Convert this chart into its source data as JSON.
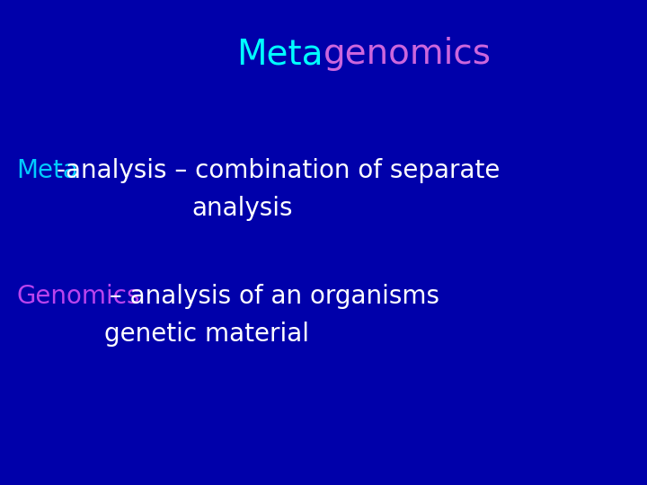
{
  "background_color": "#0000aa",
  "title_meta": "Meta",
  "title_genomics": "genomics",
  "title_meta_color": "#00ffff",
  "title_genomics_color": "#cc66dd",
  "title_fontsize": 28,
  "line1_part1": "Meta",
  "line1_part1_color": "#00ccff",
  "line1_part2": "-analysis – combination of separate",
  "line1_part2_color": "#ffffff",
  "line2": "analysis",
  "line2_color": "#ffffff",
  "line3_part1": "Genomics",
  "line3_part1_color": "#bb44ee",
  "line3_part2": " – analysis of an organisms",
  "line3_part2_color": "#ffffff",
  "line4": "genetic material",
  "line4_color": "#ffffff",
  "body_fontsize": 20
}
